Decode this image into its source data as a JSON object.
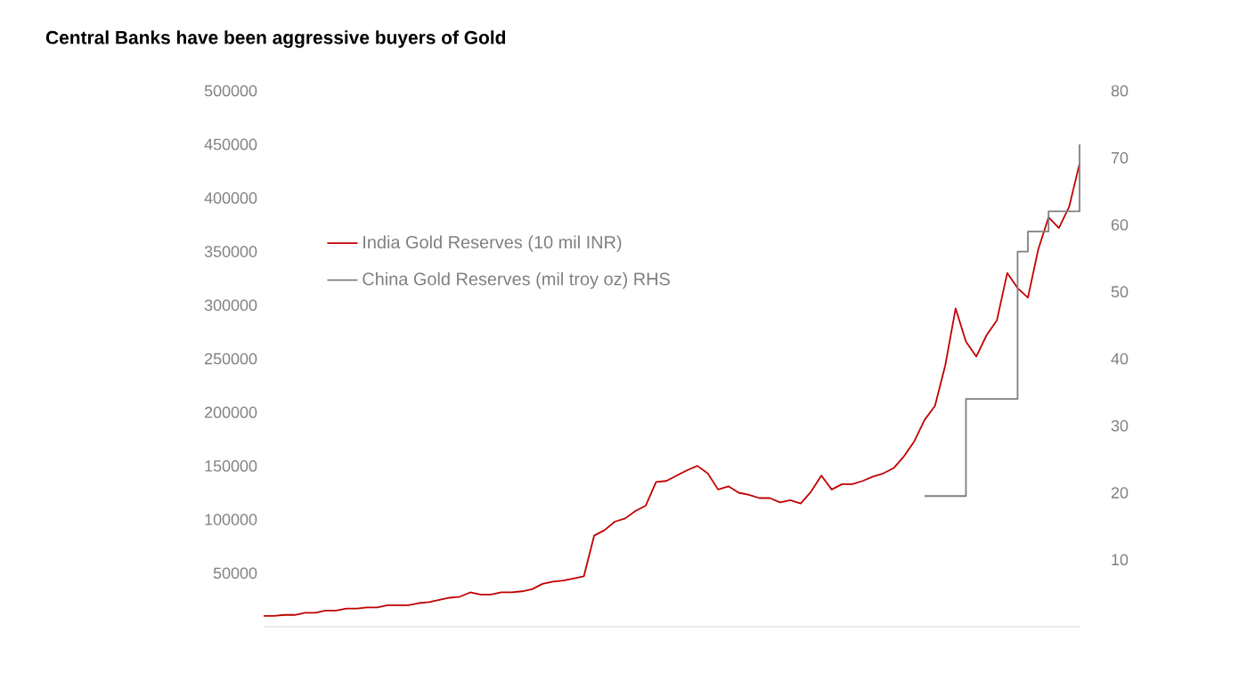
{
  "chart_data": {
    "type": "line",
    "title": "Central Banks have been aggressive buyers of Gold",
    "categories": [
      null,
      null,
      null,
      null,
      null,
      null,
      null,
      null,
      null,
      null,
      null,
      null,
      null,
      null,
      null,
      null,
      null,
      null,
      null,
      null,
      null,
      null,
      null,
      null,
      null,
      null,
      null,
      null,
      null,
      null,
      null,
      null,
      null,
      null,
      null,
      null,
      null,
      null,
      null,
      null,
      null,
      null,
      null,
      null,
      null,
      null,
      null,
      null,
      null,
      null,
      null,
      null,
      null,
      null,
      null,
      null,
      null,
      null,
      null,
      null,
      null,
      null,
      null,
      null,
      null,
      null,
      null,
      null,
      null,
      null,
      null,
      null,
      null,
      null,
      null,
      null,
      null,
      null,
      null,
      null
    ],
    "series": [
      {
        "name": "India Gold Reserves (10 mil INR)",
        "color": "#c00000",
        "values": [
          10000,
          10000,
          11000,
          11000,
          13000,
          13000,
          15000,
          15000,
          17000,
          17000,
          18000,
          18000,
          20000,
          20000,
          20000,
          22000,
          23000,
          25000,
          27000,
          28000,
          32000,
          30000,
          30000,
          32000,
          32000,
          33000,
          35000,
          40000,
          42000,
          43000,
          45000,
          47000,
          85000,
          90000,
          98000,
          101000,
          108000,
          113000,
          135000,
          136000,
          141000,
          146000,
          150000,
          143000,
          128000,
          131000,
          125000,
          123000,
          120000,
          120000,
          116000,
          118000,
          115000,
          126000,
          141000,
          128000,
          133000,
          133000,
          136000,
          140000,
          143000,
          148000,
          159000,
          173000,
          193000,
          206000,
          244000,
          297000,
          266000,
          252000,
          272000,
          286000,
          330000,
          316000,
          307000,
          352000,
          382000,
          372000,
          392000,
          432000
        ]
      },
      {
        "name": "China Gold Reserves (mil troy oz) RHS",
        "color": "#7f7f7f",
        "type": "step",
        "axis": "y2",
        "values": [
          null,
          null,
          null,
          null,
          null,
          null,
          null,
          null,
          null,
          null,
          null,
          null,
          null,
          null,
          null,
          null,
          null,
          null,
          null,
          null,
          null,
          null,
          null,
          null,
          null,
          null,
          null,
          null,
          null,
          null,
          null,
          null,
          null,
          null,
          null,
          null,
          null,
          null,
          null,
          null,
          null,
          null,
          null,
          null,
          null,
          null,
          null,
          null,
          null,
          null,
          null,
          null,
          null,
          null,
          null,
          null,
          null,
          null,
          null,
          null,
          null,
          null,
          null,
          null,
          19.5,
          19.5,
          19.5,
          19.5,
          34,
          34,
          34,
          34,
          34,
          56,
          59,
          59,
          62,
          62,
          62,
          72
        ]
      }
    ],
    "ylim": [
      0,
      500000
    ],
    "yticks": [
      50000,
      100000,
      150000,
      200000,
      250000,
      300000,
      350000,
      400000,
      450000,
      500000
    ],
    "y2lim": [
      0,
      80
    ],
    "y2ticks": [
      10,
      20,
      30,
      40,
      50,
      60,
      70,
      80
    ],
    "legend": "top left",
    "marker": "none",
    "line_style": "solid"
  }
}
